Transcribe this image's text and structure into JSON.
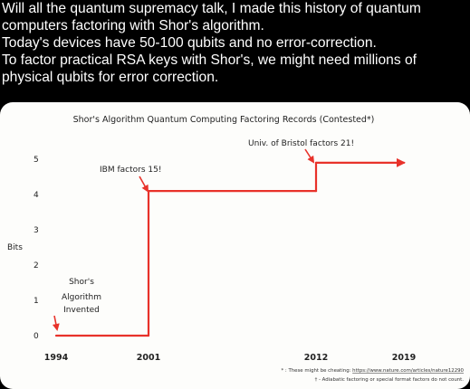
{
  "post": {
    "lines": [
      "Will all the quantum supremacy talk, I made this history of quantum computers factoring with Shor's algorithm.",
      "Today's devices have 50-100 qubits and no error-correction.",
      "To factor practical RSA keys with Shor's, we might need millions of physical qubits for error correction."
    ]
  },
  "colors": {
    "background": "#000000",
    "text": "#ffffff",
    "card": "#fdfdfb",
    "line": "#e8322a",
    "ink": "#222222"
  },
  "chart_data": {
    "type": "line",
    "title": "Shor's Algorithm Quantum Computing Factoring Records (Contested*)",
    "ylabel": "Bits",
    "xlabel": "",
    "x_ticks": [
      "1994",
      "2001",
      "2012",
      "2019"
    ],
    "y_ticks": [
      "0",
      "1",
      "2",
      "3",
      "4",
      "5"
    ],
    "ylim": [
      0,
      5
    ],
    "series": [
      {
        "points": [
          {
            "x": 1994,
            "y": 0
          },
          {
            "x": 2001,
            "y": 0
          },
          {
            "x": 2001,
            "y": 4.1
          },
          {
            "x": 2012,
            "y": 4.1
          },
          {
            "x": 2012,
            "y": 4.9
          },
          {
            "x": 2019,
            "y": 4.9
          }
        ],
        "end_arrow": true
      }
    ],
    "annotations": [
      {
        "id": "shor",
        "lines": [
          "Shor's",
          "Algorithm",
          "Invented"
        ]
      },
      {
        "id": "ibm",
        "lines": [
          "IBM factors 15!"
        ]
      },
      {
        "id": "bristol",
        "lines": [
          "Univ. of Bristol factors 21!"
        ]
      }
    ],
    "footnotes": {
      "note1_prefix": "* : These might be cheating: ",
      "note1_link": "https://www.nature.com/articles/nature12290",
      "note2": "† - Adiabatic factoring or special format factors do not count."
    }
  }
}
